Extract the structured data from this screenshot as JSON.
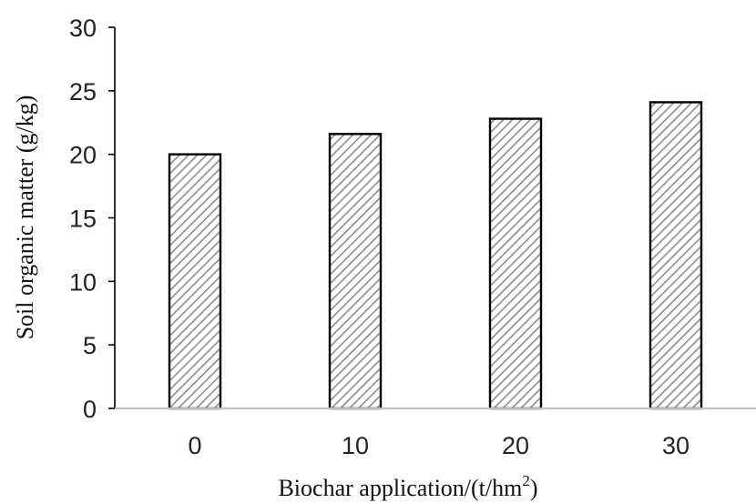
{
  "chart_data": {
    "type": "bar",
    "categories": [
      "0",
      "10",
      "20",
      "30"
    ],
    "values": [
      20.0,
      21.6,
      22.8,
      24.1
    ],
    "xlabel": "Biochar application/(t/hm",
    "xlabel_superscript": "2",
    "xlabel_suffix": ")",
    "ylabel": "Soil organic matter (g/kg)",
    "ylim": [
      0,
      30
    ],
    "yticks": [
      "0",
      "5",
      "10",
      "15",
      "20",
      "25",
      "30"
    ],
    "grid": false,
    "legend": "none",
    "bar_fill": "hatched",
    "colors": {
      "bar_edge": "#000000",
      "hatch": "#8c8c8c",
      "axis": "#000000"
    }
  }
}
